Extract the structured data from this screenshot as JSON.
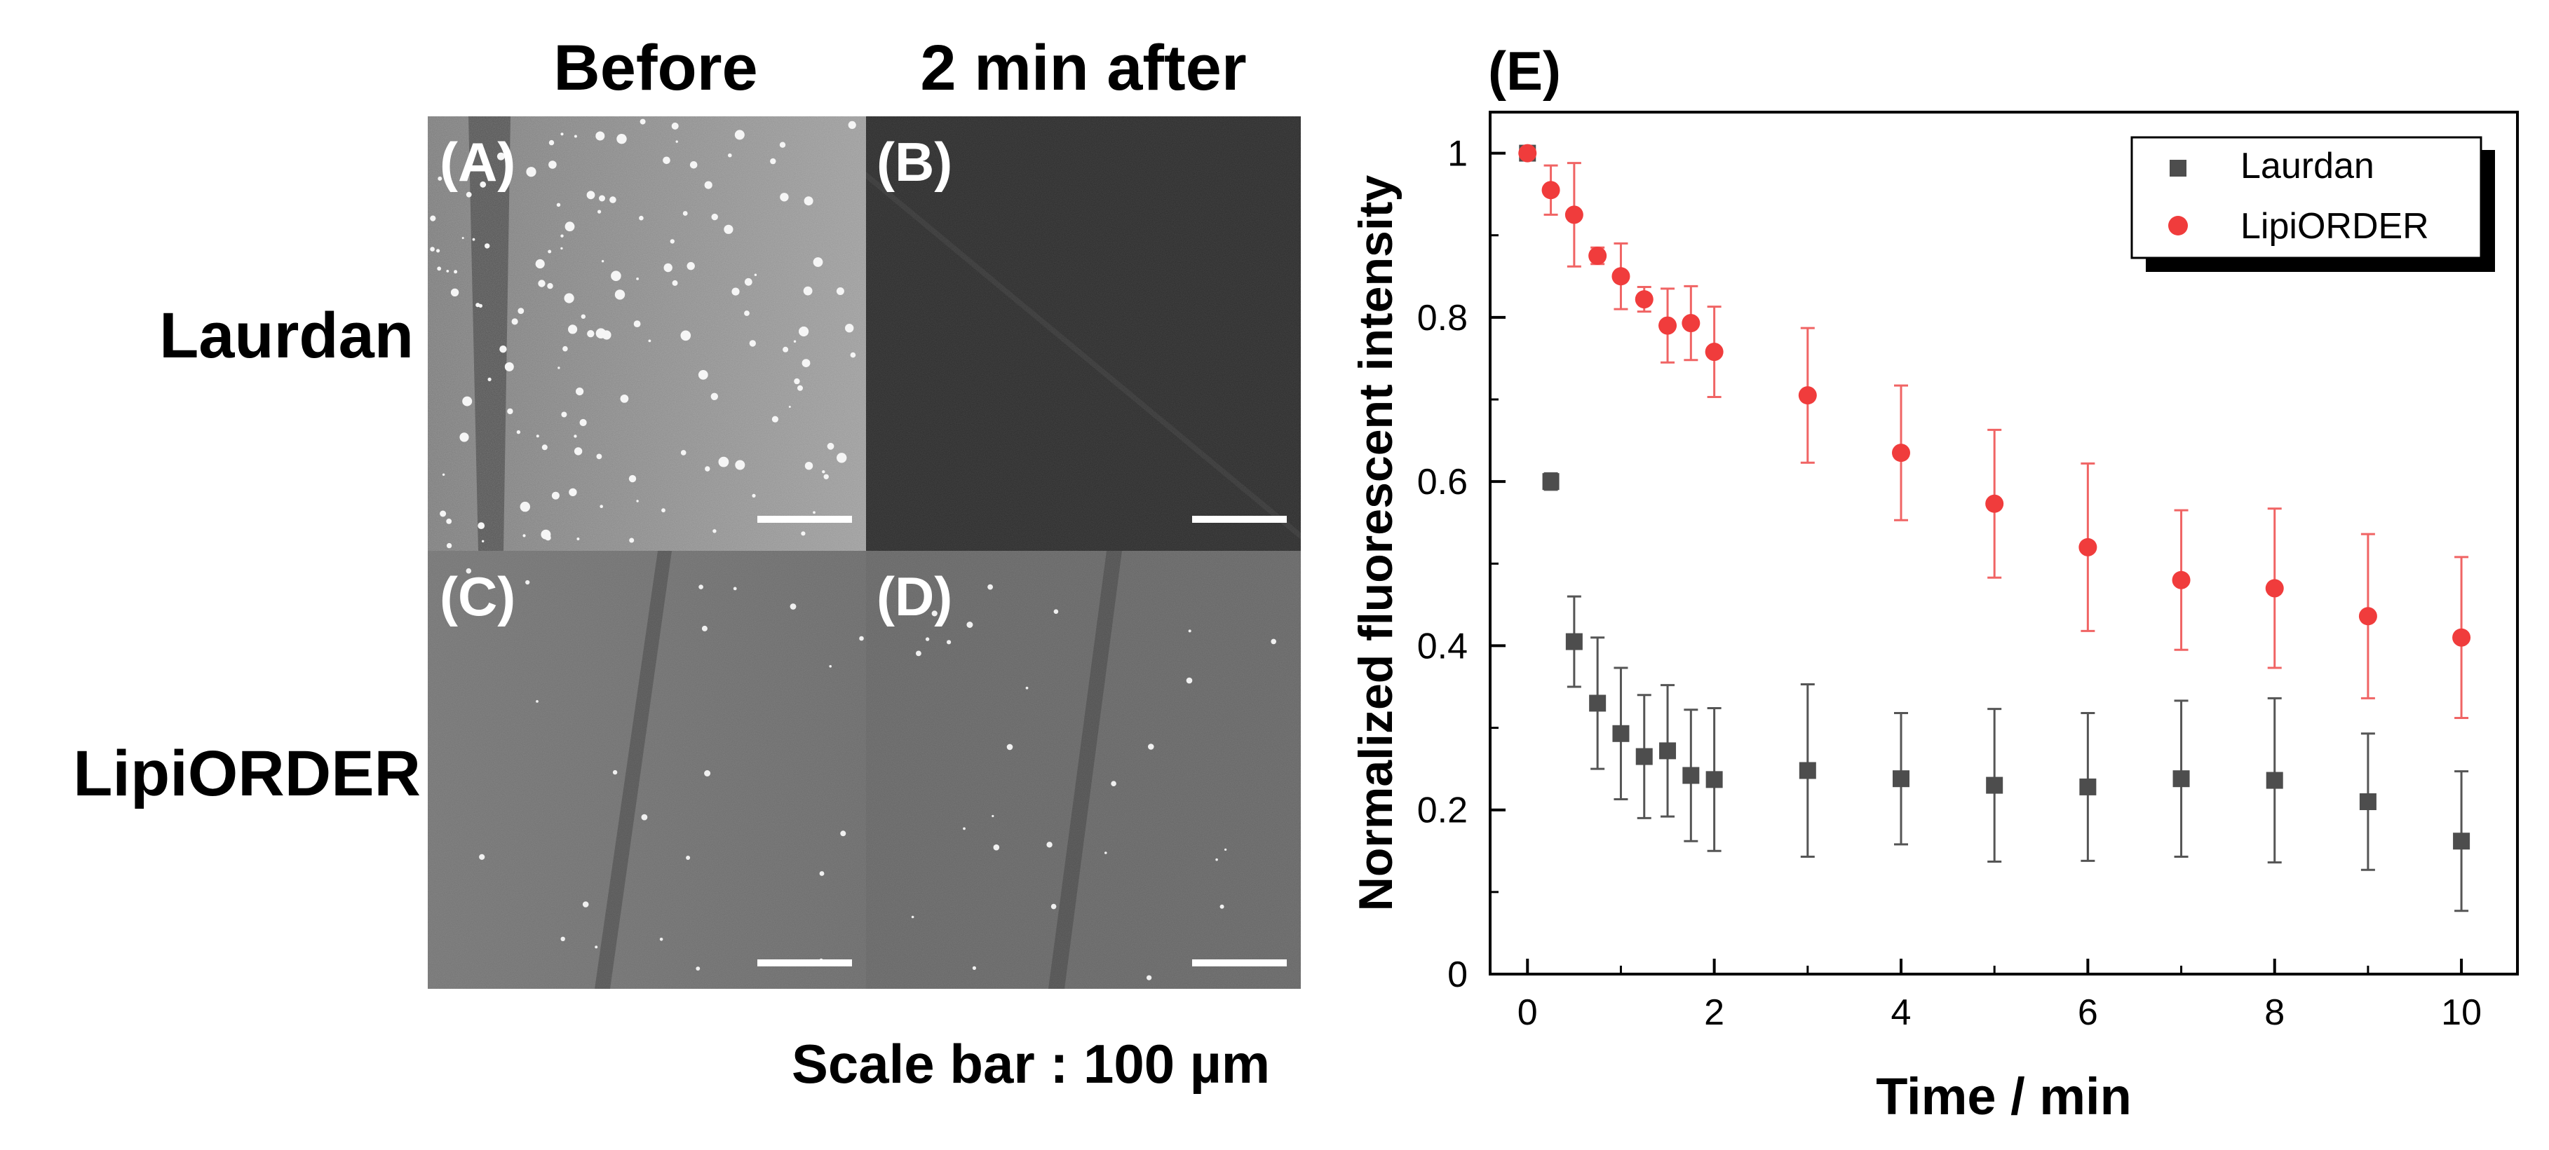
{
  "columns": {
    "before": "Before",
    "after": "2 min after"
  },
  "rows": {
    "laurdan": "Laurdan",
    "lipiorder": "LipiORDER"
  },
  "panels": {
    "a": "(A)",
    "b": "(B)",
    "c": "(C)",
    "d": "(D)",
    "e": "(E)"
  },
  "scale_bar_label": "Scale bar : 100 µm",
  "colors": {
    "laurdan": "#4d4d4d",
    "lipiorder": "#f03c3c",
    "lipiorder_errorbar": "#f06464",
    "laurdan_errorbar": "#555555"
  },
  "chart_data": {
    "type": "scatter",
    "title": "",
    "xlabel": "Time / min",
    "ylabel": "Normalized fluorescent intensity",
    "xlim": [
      -0.4,
      10.6
    ],
    "ylim": [
      0,
      1.05
    ],
    "xticks": [
      "0",
      "2",
      "4",
      "6",
      "8",
      "10"
    ],
    "yticks": [
      "0",
      "0.2",
      "0.4",
      "0.6",
      "0.8",
      "1"
    ],
    "legend_position": "top-right",
    "series": [
      {
        "name": "Laurdan",
        "marker": "square",
        "x": [
          0,
          0.25,
          0.5,
          0.75,
          1,
          1.25,
          1.5,
          1.75,
          2,
          3,
          4,
          5,
          6,
          7,
          8,
          9,
          10
        ],
        "y": [
          1.0,
          0.6,
          0.405,
          0.33,
          0.293,
          0.265,
          0.272,
          0.242,
          0.237,
          0.248,
          0.238,
          0.23,
          0.228,
          0.238,
          0.236,
          0.21,
          0.162
        ],
        "err": [
          0.0,
          0.01,
          0.055,
          0.08,
          0.08,
          0.075,
          0.08,
          0.08,
          0.087,
          0.105,
          0.08,
          0.093,
          0.09,
          0.095,
          0.1,
          0.083,
          0.085
        ]
      },
      {
        "name": "LipiORDER",
        "marker": "circle",
        "x": [
          0,
          0.25,
          0.5,
          0.75,
          1,
          1.25,
          1.5,
          1.75,
          2,
          3,
          4,
          5,
          6,
          7,
          8,
          9,
          10
        ],
        "y": [
          1.0,
          0.955,
          0.925,
          0.875,
          0.85,
          0.822,
          0.79,
          0.793,
          0.758,
          0.705,
          0.635,
          0.573,
          0.52,
          0.48,
          0.47,
          0.436,
          0.41
        ],
        "err": [
          0.0,
          0.03,
          0.063,
          0.01,
          0.04,
          0.015,
          0.045,
          0.045,
          0.055,
          0.082,
          0.082,
          0.09,
          0.102,
          0.085,
          0.097,
          0.1,
          0.098
        ]
      }
    ]
  }
}
